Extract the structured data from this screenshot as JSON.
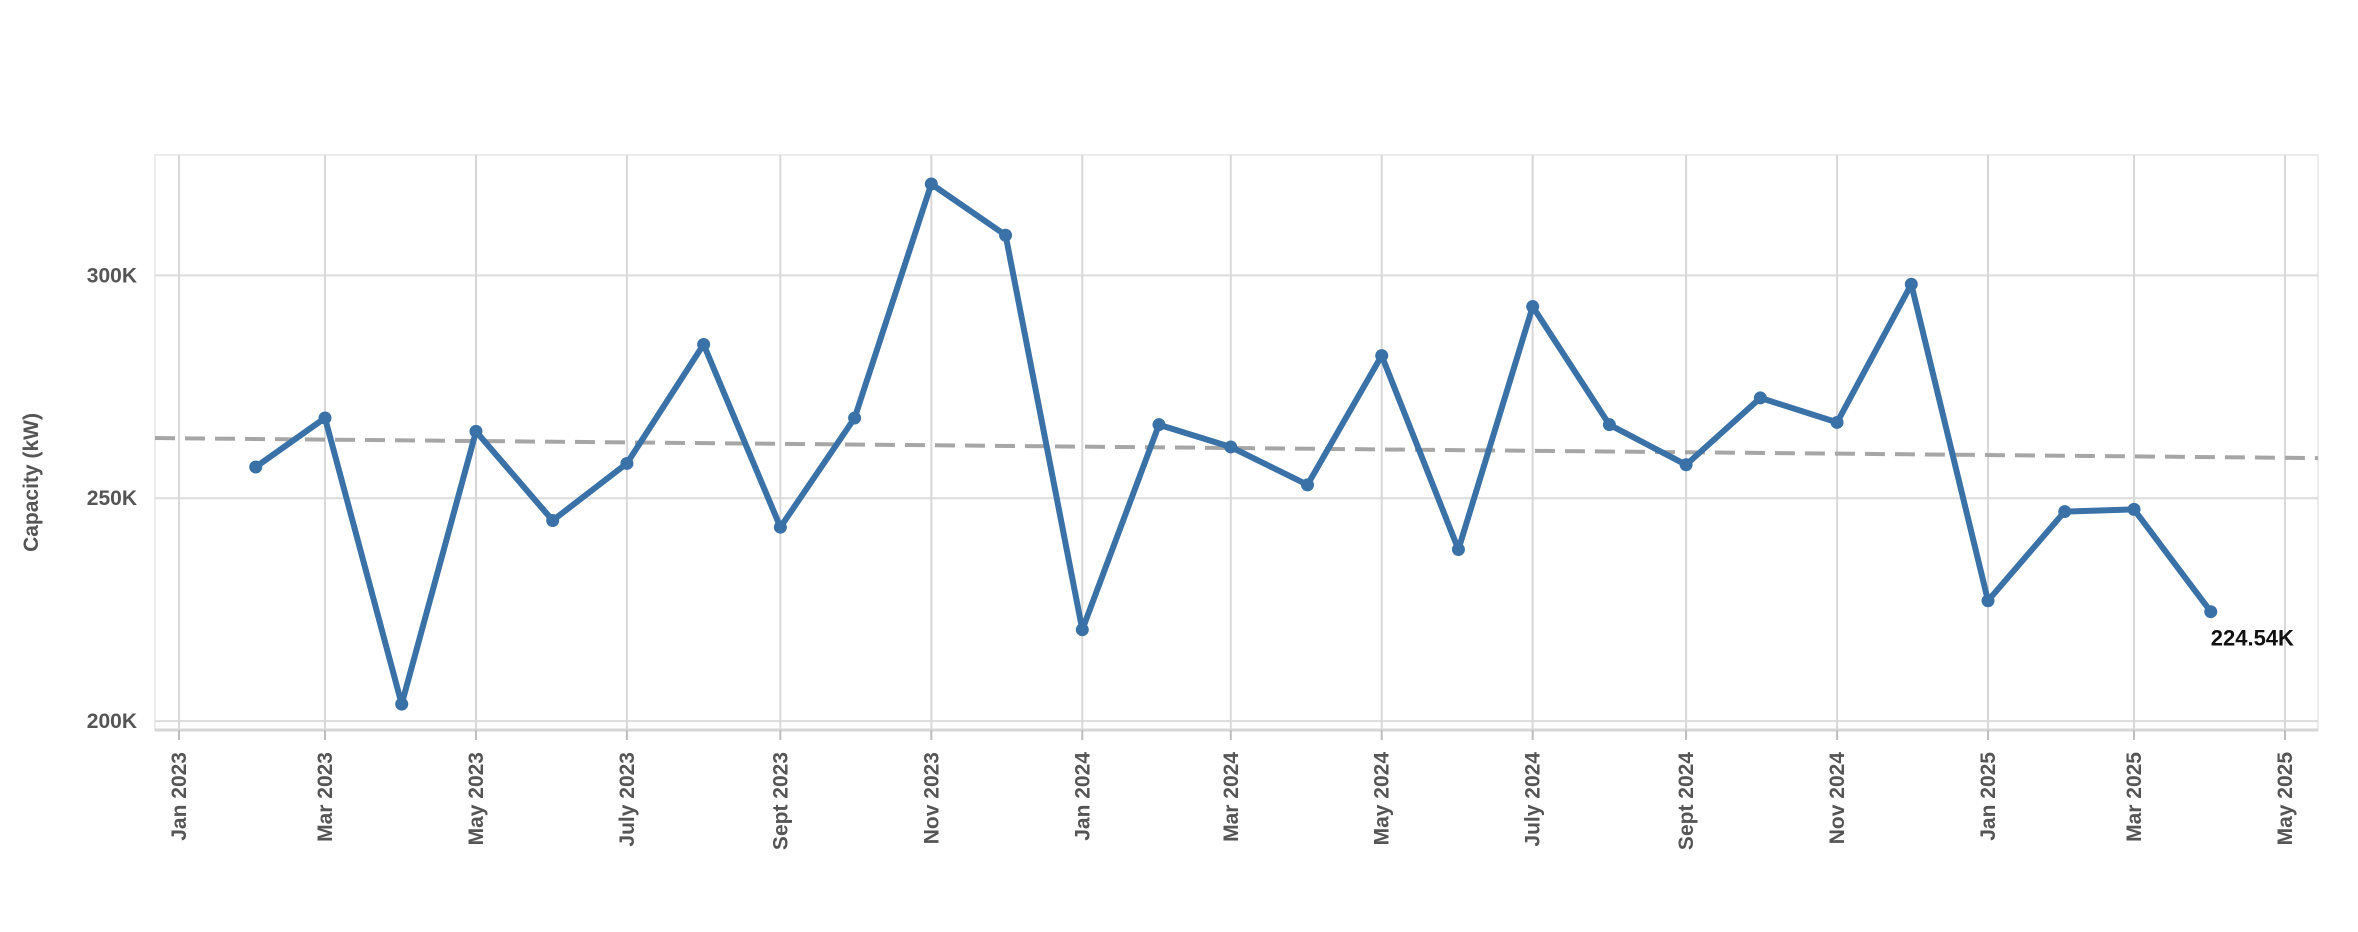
{
  "chart_data": {
    "type": "line",
    "ylabel": "Capacity (kW)",
    "xlim": [
      "2023-01-01",
      "2025-05-01"
    ],
    "ylim": [
      198000,
      327000
    ],
    "grid": true,
    "x_ticks": [
      {
        "date": "2023-01-01",
        "label": "Jan 2023"
      },
      {
        "date": "2023-03-01",
        "label": "Mar 2023"
      },
      {
        "date": "2023-05-01",
        "label": "May 2023"
      },
      {
        "date": "2023-07-01",
        "label": "July 2023"
      },
      {
        "date": "2023-09-01",
        "label": "Sept 2023"
      },
      {
        "date": "2023-11-01",
        "label": "Nov 2023"
      },
      {
        "date": "2024-01-01",
        "label": "Jan 2024"
      },
      {
        "date": "2024-03-01",
        "label": "Mar 2024"
      },
      {
        "date": "2024-05-01",
        "label": "May 2024"
      },
      {
        "date": "2024-07-01",
        "label": "July 2024"
      },
      {
        "date": "2024-09-01",
        "label": "Sept 2024"
      },
      {
        "date": "2024-11-01",
        "label": "Nov 2024"
      },
      {
        "date": "2025-01-01",
        "label": "Jan 2025"
      },
      {
        "date": "2025-03-01",
        "label": "Mar 2025"
      },
      {
        "date": "2025-05-01",
        "label": "May 2025"
      }
    ],
    "y_ticks": [
      {
        "value": 200000,
        "label": "200K"
      },
      {
        "value": 250000,
        "label": "250K"
      },
      {
        "value": 300000,
        "label": "300K"
      }
    ],
    "series": [
      {
        "color": "#3a72a8",
        "points": [
          {
            "x": "2023-02-01",
            "y": 257000
          },
          {
            "x": "2023-03-01",
            "y": 268000
          },
          {
            "x": "2023-04-01",
            "y": 203800
          },
          {
            "x": "2023-05-01",
            "y": 265000
          },
          {
            "x": "2023-06-01",
            "y": 245000
          },
          {
            "x": "2023-07-01",
            "y": 257800
          },
          {
            "x": "2023-08-01",
            "y": 284500
          },
          {
            "x": "2023-09-01",
            "y": 243500
          },
          {
            "x": "2023-10-01",
            "y": 268000
          },
          {
            "x": "2023-11-01",
            "y": 320500
          },
          {
            "x": "2023-12-01",
            "y": 309000
          },
          {
            "x": "2024-01-01",
            "y": 220500
          },
          {
            "x": "2024-02-01",
            "y": 266500
          },
          {
            "x": "2024-03-01",
            "y": 261500
          },
          {
            "x": "2024-04-01",
            "y": 253000
          },
          {
            "x": "2024-05-01",
            "y": 282000
          },
          {
            "x": "2024-06-01",
            "y": 238500
          },
          {
            "x": "2024-07-01",
            "y": 293000
          },
          {
            "x": "2024-08-01",
            "y": 266500
          },
          {
            "x": "2024-09-01",
            "y": 257500
          },
          {
            "x": "2024-10-01",
            "y": 272500
          },
          {
            "x": "2024-11-01",
            "y": 267000
          },
          {
            "x": "2024-12-01",
            "y": 298000
          },
          {
            "x": "2025-01-01",
            "y": 227000
          },
          {
            "x": "2025-02-01",
            "y": 247000
          },
          {
            "x": "2025-03-01",
            "y": 247500
          },
          {
            "x": "2025-04-01",
            "y": 224540
          }
        ]
      }
    ],
    "trend_line": {
      "style": "dashed",
      "color": "#a6a6a6",
      "start": {
        "x": "2023-01-01",
        "y": 263500
      },
      "end": {
        "x": "2025-05-01",
        "y": 259000
      }
    },
    "annotations": [
      {
        "x": "2025-04-01",
        "y": 224540,
        "text": "224.54K"
      }
    ]
  }
}
